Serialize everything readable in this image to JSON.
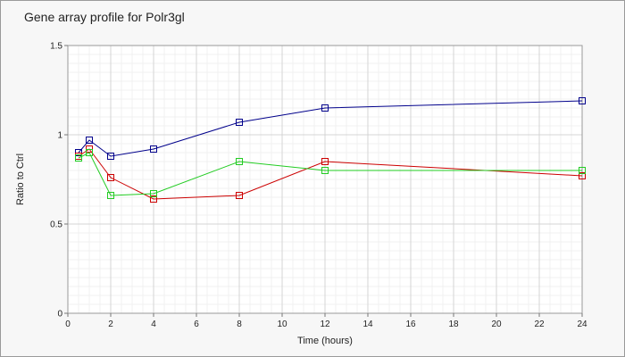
{
  "chart_data": {
    "type": "line",
    "title": "Gene array profile for Polr3gl",
    "xlabel": "Time (hours)",
    "ylabel": "Ratio to Ctrl",
    "xlim": [
      0,
      24
    ],
    "ylim": [
      0,
      1.5
    ],
    "x_ticks": [
      0,
      2,
      4,
      6,
      8,
      10,
      12,
      14,
      16,
      18,
      20,
      22,
      24
    ],
    "y_ticks": [
      0,
      0.5,
      1,
      1.5
    ],
    "y_tick_labels": [
      "0",
      "0.5",
      "1",
      "1.5"
    ],
    "grid": true,
    "marker": "square",
    "series": [
      {
        "color": "#00008b",
        "x": [
          0.5,
          1,
          2,
          4,
          8,
          12,
          24
        ],
        "y": [
          0.9,
          0.97,
          0.88,
          0.92,
          1.07,
          1.15,
          1.19
        ]
      },
      {
        "color": "#cc0000",
        "x": [
          0.5,
          1,
          2,
          4,
          8,
          12,
          24
        ],
        "y": [
          0.88,
          0.92,
          0.76,
          0.64,
          0.66,
          0.85,
          0.77
        ]
      },
      {
        "color": "#22cc22",
        "x": [
          0.5,
          1,
          2,
          4,
          8,
          12,
          24
        ],
        "y": [
          0.87,
          0.9,
          0.66,
          0.67,
          0.85,
          0.8,
          0.8
        ]
      }
    ]
  }
}
